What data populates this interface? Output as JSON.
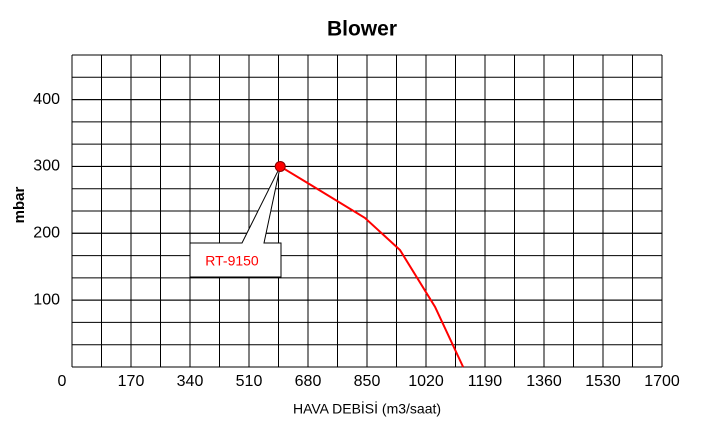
{
  "chart_data": {
    "type": "line",
    "title": "Blower",
    "x_label": "HAVA DEBİSİ (m3/saat)",
    "y_label": "mbar",
    "series": [
      {
        "name": "RT-9150",
        "color": "#ff0000",
        "x": [
          600,
          686,
          844,
          945,
          1046,
          1127
        ],
        "values": [
          300,
          273,
          223,
          175,
          90,
          0
        ]
      }
    ],
    "xlim": [
      0,
      1700
    ],
    "xticks": [
      0,
      170,
      340,
      510,
      680,
      850,
      1020,
      1190,
      1360,
      1530,
      1700
    ],
    "ylim": [
      0,
      466.7
    ],
    "yticks": [
      100,
      200,
      300,
      400
    ],
    "grid": true,
    "annotation": {
      "text": "RT-9150",
      "x": 600,
      "y": 300
    }
  }
}
